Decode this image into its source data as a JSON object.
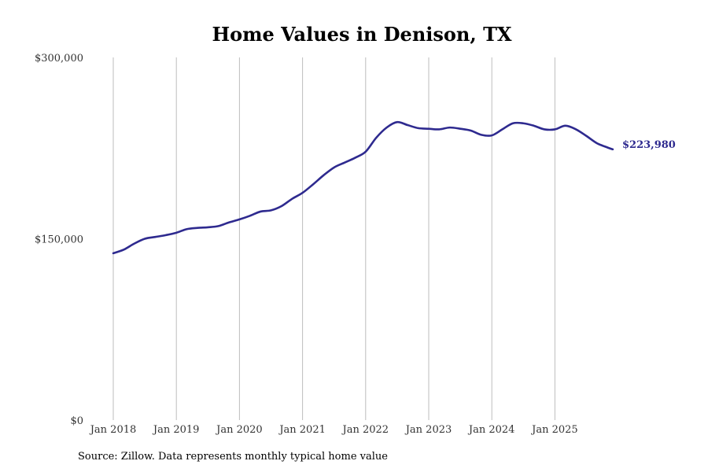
{
  "chart_data": {
    "type": "line",
    "title": "Home Values in Denison, TX",
    "xlabel": "",
    "ylabel": "",
    "ylim": [
      0,
      300000
    ],
    "y_ticks": [
      {
        "value": 0,
        "label": "$0"
      },
      {
        "value": 150000,
        "label": "$150,000"
      },
      {
        "value": 300000,
        "label": "$300,000"
      }
    ],
    "x_range": [
      2018.0,
      2025.9167
    ],
    "x_ticks": [
      {
        "value": 2018,
        "label": "Jan 2018"
      },
      {
        "value": 2019,
        "label": "Jan 2019"
      },
      {
        "value": 2020,
        "label": "Jan 2020"
      },
      {
        "value": 2021,
        "label": "Jan 2021"
      },
      {
        "value": 2022,
        "label": "Jan 2022"
      },
      {
        "value": 2023,
        "label": "Jan 2023"
      },
      {
        "value": 2024,
        "label": "Jan 2024"
      },
      {
        "value": 2025,
        "label": "Jan 2025"
      }
    ],
    "grid": "vertical",
    "series": [
      {
        "name": "Typical home value",
        "color": "#2e2a8f",
        "x": [
          2018.0,
          2018.1667,
          2018.3333,
          2018.5,
          2018.6667,
          2018.8333,
          2019.0,
          2019.1667,
          2019.3333,
          2019.5,
          2019.6667,
          2019.8333,
          2020.0,
          2020.1667,
          2020.3333,
          2020.5,
          2020.6667,
          2020.8333,
          2021.0,
          2021.1667,
          2021.3333,
          2021.5,
          2021.6667,
          2021.8333,
          2022.0,
          2022.1667,
          2022.3333,
          2022.5,
          2022.6667,
          2022.8333,
          2023.0,
          2023.1667,
          2023.3333,
          2023.5,
          2023.6667,
          2023.8333,
          2024.0,
          2024.1667,
          2024.3333,
          2024.5,
          2024.6667,
          2024.8333,
          2025.0,
          2025.1667,
          2025.3333,
          2025.5,
          2025.6667,
          2025.8333,
          2025.9167
        ],
        "values": [
          138000,
          141000,
          146000,
          150000,
          151500,
          153000,
          155000,
          158000,
          159000,
          159500,
          160500,
          163500,
          166000,
          169000,
          172500,
          173500,
          177000,
          183000,
          188000,
          195000,
          202500,
          209000,
          213000,
          217000,
          222000,
          233500,
          242000,
          246500,
          244000,
          241500,
          241000,
          240500,
          242000,
          241000,
          239500,
          236000,
          235500,
          240500,
          245500,
          245500,
          243500,
          240500,
          240500,
          243500,
          240500,
          235000,
          229000,
          225500,
          223980
        ]
      }
    ],
    "end_label": "$223,980"
  },
  "footer": {
    "source": "Source: Zillow. Data represents monthly typical home value"
  }
}
